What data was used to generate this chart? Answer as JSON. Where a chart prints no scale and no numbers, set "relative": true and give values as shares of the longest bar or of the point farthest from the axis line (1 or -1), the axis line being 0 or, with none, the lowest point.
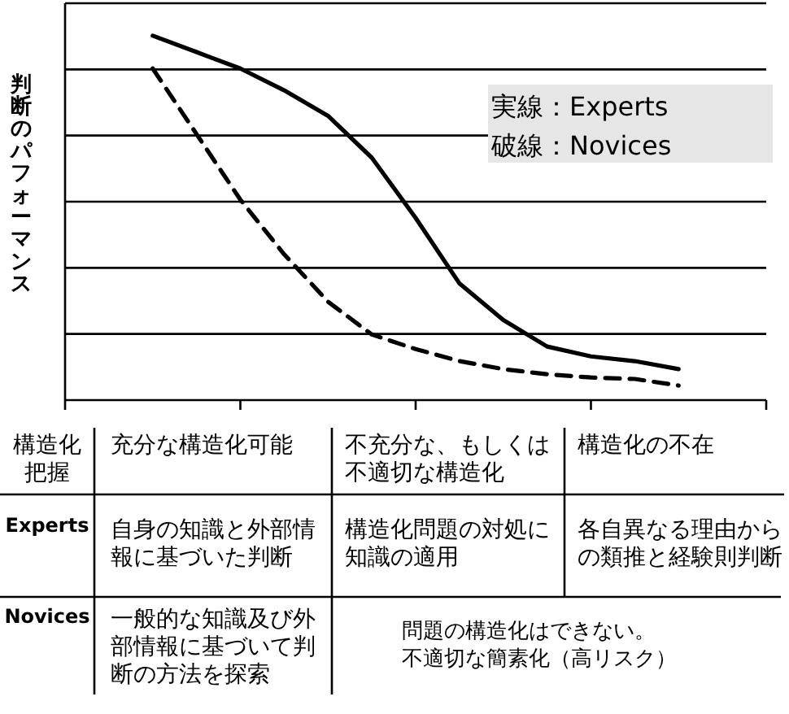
{
  "chart_data": {
    "type": "line",
    "relative": true,
    "ylabel": "判断のパフォーマンス",
    "grid": true,
    "categories": [
      null,
      null,
      null,
      null,
      null,
      null,
      null,
      null,
      null,
      null,
      null,
      null,
      null
    ],
    "series": [
      {
        "color": "#000000",
        "line_style": "solid",
        "values": [
          1,
          0.955,
          0.91,
          0.85,
          0.78,
          0.665,
          0.5,
          0.32,
          0.22,
          0.147,
          0.12,
          0.107,
          0.085
        ]
      },
      {
        "color": "#000000",
        "line_style": "dashed",
        "values": [
          0.91,
          0.73,
          0.55,
          0.4,
          0.27,
          0.18,
          0.14,
          0.107,
          0.085,
          0.071,
          0.062,
          0.058,
          0.04
        ]
      }
    ],
    "annotations": [
      "構造化把握",
      "充分な構造化可能",
      "不充分な、もしくは不適切な構造化",
      "構造化の不在",
      "Experts",
      "自身の知識と外部情報に基づいた判断",
      "構造化問題の対処に知識の適用",
      "各自異なる理由からの類推と経験則判断",
      "Novices",
      "一般的な知識及び外部情報に基づいて判断の方法を探索",
      "問題の構造化はできない。不適切な簡素化（高リスク）",
      "実線：Experts",
      "破線：Novices"
    ]
  }
}
